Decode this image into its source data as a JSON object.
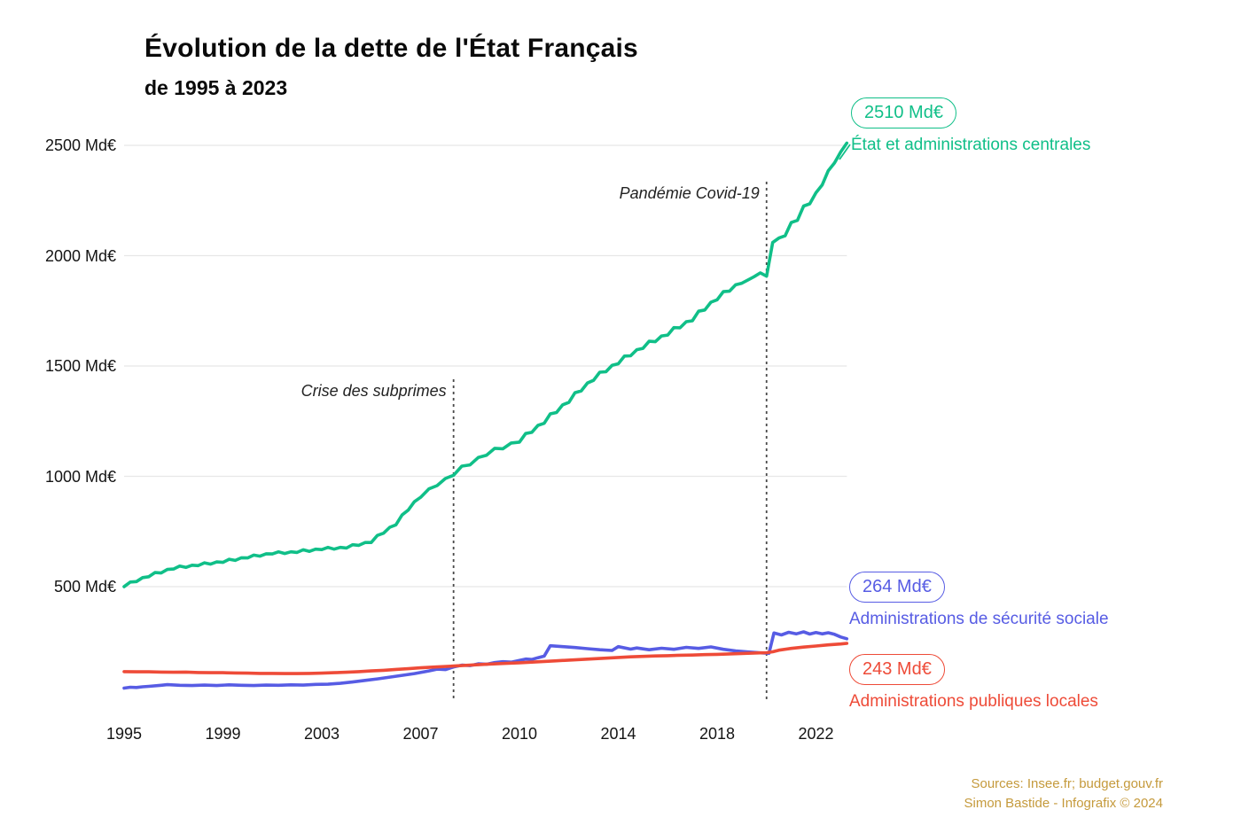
{
  "page": {
    "background": "#ffffff"
  },
  "footer": {
    "source_line1": "Sources: Insee.fr; budget.gouv.fr",
    "source_line2": "Simon Bastide - Infografix © 2024",
    "color": "#c59a3c"
  },
  "chart_data": {
    "type": "line",
    "title": "Évolution de la dette de l'État Français",
    "subtitle": "de 1995 à 2023",
    "unit_suffix": " Md€",
    "y_ticks": [
      500,
      1000,
      1500,
      2000,
      2500
    ],
    "x_tick_years": [
      1995,
      1999,
      2003,
      2007,
      2010,
      2014,
      2018,
      2022
    ],
    "ylim": [
      0,
      2560
    ],
    "xlim": [
      1995,
      2023.25
    ],
    "grid": "horizontal",
    "legend_position": "right",
    "grid_color": "#e7e7e7",
    "annotation_line_color": "#4a4a4a",
    "annotations": [
      {
        "label": "Crise des subprimes",
        "year": 2008
      },
      {
        "label": "Pandémie Covid-19",
        "year": 2020
      }
    ],
    "series": [
      {
        "name": "État et administrations centrales",
        "color": "#10bf88",
        "end_label": "2510 Md€",
        "end_value": 2510,
        "start_year": 1995,
        "step_years": 0.25,
        "values": [
          500,
          521,
          523,
          541,
          545,
          564,
          562,
          578,
          580,
          593,
          587,
          597,
          595,
          608,
          602,
          612,
          610,
          624,
          619,
          631,
          630,
          643,
          638,
          649,
          648,
          658,
          650,
          658,
          655,
          667,
          660,
          670,
          668,
          678,
          670,
          678,
          675,
          690,
          687,
          700,
          700,
          732,
          742,
          769,
          780,
          825,
          847,
          885,
          905,
          943,
          958,
          990,
          1005,
          1046,
          1052,
          1085,
          1095,
          1127,
          1125,
          1151,
          1155,
          1194,
          1199,
          1231,
          1240,
          1283,
          1289,
          1324,
          1335,
          1379,
          1387,
          1423,
          1435,
          1472,
          1474,
          1503,
          1510,
          1545,
          1546,
          1574,
          1580,
          1612,
          1610,
          1636,
          1640,
          1674,
          1673,
          1701,
          1705,
          1748,
          1754,
          1789,
          1800,
          1837,
          1839,
          1868,
          1875,
          1890,
          1905,
          1922,
          1907,
          2060,
          2080,
          2090,
          2150,
          2160,
          2225,
          2235,
          2285,
          2320,
          2385,
          2420,
          2470,
          2510
        ]
      },
      {
        "name": "Administrations de sécurité sociale",
        "color": "#575ce4",
        "end_label": "264 Md€",
        "end_value": 264,
        "points": [
          [
            1995,
            40
          ],
          [
            1995.25,
            44
          ],
          [
            1995.5,
            43
          ],
          [
            1995.75,
            46
          ],
          [
            1996,
            48
          ],
          [
            1996.5,
            53
          ],
          [
            1996.75,
            56
          ],
          [
            1997.25,
            53
          ],
          [
            1997.75,
            52
          ],
          [
            1998.25,
            54
          ],
          [
            1998.75,
            52
          ],
          [
            1999.25,
            55
          ],
          [
            1999.75,
            53
          ],
          [
            2000.25,
            52
          ],
          [
            2000.75,
            54
          ],
          [
            2001.25,
            53
          ],
          [
            2001.75,
            55
          ],
          [
            2002.25,
            54
          ],
          [
            2002.75,
            57
          ],
          [
            2003.25,
            58
          ],
          [
            2003.75,
            62
          ],
          [
            2004.25,
            68
          ],
          [
            2004.75,
            75
          ],
          [
            2005.25,
            82
          ],
          [
            2005.75,
            90
          ],
          [
            2006.25,
            98
          ],
          [
            2006.75,
            106
          ],
          [
            2007.25,
            118
          ],
          [
            2007.5,
            126
          ],
          [
            2007.75,
            124
          ],
          [
            2008,
            136
          ],
          [
            2008.25,
            144
          ],
          [
            2008.5,
            142
          ],
          [
            2008.75,
            150
          ],
          [
            2009,
            148
          ],
          [
            2009.25,
            156
          ],
          [
            2009.5,
            160
          ],
          [
            2009.75,
            158
          ],
          [
            2010,
            166
          ],
          [
            2010.25,
            172
          ],
          [
            2010.5,
            170
          ],
          [
            2010.75,
            178
          ],
          [
            2011,
            185
          ],
          [
            2011.25,
            232
          ],
          [
            2011.75,
            228
          ],
          [
            2012.25,
            224
          ],
          [
            2012.75,
            219
          ],
          [
            2013.25,
            214
          ],
          [
            2013.75,
            211
          ],
          [
            2014,
            228
          ],
          [
            2014.5,
            217
          ],
          [
            2014.75,
            222
          ],
          [
            2015.25,
            214
          ],
          [
            2015.75,
            221
          ],
          [
            2016.25,
            216
          ],
          [
            2016.75,
            225
          ],
          [
            2017.25,
            220
          ],
          [
            2017.75,
            227
          ],
          [
            2018.25,
            216
          ],
          [
            2018.75,
            209
          ],
          [
            2019.25,
            204
          ],
          [
            2019.75,
            200
          ],
          [
            2020.1,
            198
          ],
          [
            2020.3,
            290
          ],
          [
            2020.6,
            281
          ],
          [
            2020.9,
            293
          ],
          [
            2021.2,
            286
          ],
          [
            2021.5,
            295
          ],
          [
            2021.75,
            285
          ],
          [
            2022,
            292
          ],
          [
            2022.25,
            286
          ],
          [
            2022.5,
            291
          ],
          [
            2022.75,
            284
          ],
          [
            2023,
            272
          ],
          [
            2023.25,
            264
          ]
        ]
      },
      {
        "name": "Administrations publiques locales",
        "color": "#ee4b38",
        "end_label": "243 Md€",
        "end_value": 243,
        "points": [
          [
            1995,
            115
          ],
          [
            1995.5,
            114
          ],
          [
            1996,
            114
          ],
          [
            1996.5,
            113
          ],
          [
            1997,
            112
          ],
          [
            1997.5,
            113
          ],
          [
            1998,
            111
          ],
          [
            1998.5,
            110
          ],
          [
            1999,
            110
          ],
          [
            1999.5,
            109
          ],
          [
            2000,
            108
          ],
          [
            2000.5,
            107
          ],
          [
            2001,
            107
          ],
          [
            2001.5,
            106
          ],
          [
            2002,
            106
          ],
          [
            2002.5,
            107
          ],
          [
            2003,
            108
          ],
          [
            2003.5,
            110
          ],
          [
            2004,
            112
          ],
          [
            2004.5,
            115
          ],
          [
            2005,
            118
          ],
          [
            2005.5,
            121
          ],
          [
            2006,
            125
          ],
          [
            2006.5,
            128
          ],
          [
            2007,
            132
          ],
          [
            2007.5,
            136
          ],
          [
            2008,
            140
          ],
          [
            2008.5,
            144
          ],
          [
            2009,
            148
          ],
          [
            2009.5,
            152
          ],
          [
            2010,
            155
          ],
          [
            2010.5,
            158
          ],
          [
            2011,
            161
          ],
          [
            2011.5,
            164
          ],
          [
            2012,
            167
          ],
          [
            2012.5,
            170
          ],
          [
            2013,
            173
          ],
          [
            2013.5,
            176
          ],
          [
            2014,
            179
          ],
          [
            2014.5,
            182
          ],
          [
            2015,
            184
          ],
          [
            2015.5,
            186
          ],
          [
            2016,
            187
          ],
          [
            2016.5,
            189
          ],
          [
            2017,
            190
          ],
          [
            2017.5,
            192
          ],
          [
            2018,
            193
          ],
          [
            2018.5,
            195
          ],
          [
            2019,
            197
          ],
          [
            2019.5,
            199
          ],
          [
            2020,
            201
          ],
          [
            2020.25,
            205
          ],
          [
            2020.5,
            212
          ],
          [
            2021,
            220
          ],
          [
            2021.5,
            226
          ],
          [
            2022,
            231
          ],
          [
            2022.5,
            236
          ],
          [
            2023,
            240
          ],
          [
            2023.25,
            243
          ]
        ]
      }
    ]
  }
}
